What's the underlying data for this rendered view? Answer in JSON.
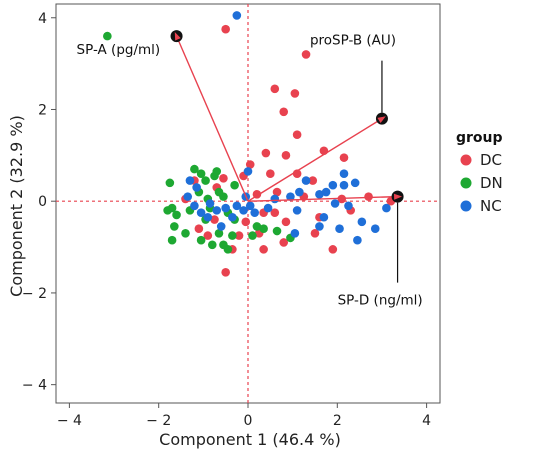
{
  "chart_data": {
    "type": "scatter",
    "title": "",
    "xlabel": "Component 1  (46.4 %)",
    "ylabel": "Component 2  (32.9 %)",
    "xlim": [
      -4.3,
      4.3
    ],
    "ylim": [
      -4.4,
      4.3
    ],
    "xticks": [
      -4,
      -2,
      0,
      2,
      4
    ],
    "yticks": [
      -4,
      -2,
      0,
      2,
      4
    ],
    "xtick_labels": [
      "− 4",
      "− 2",
      "0",
      "2",
      "4"
    ],
    "ytick_labels": [
      "− 4",
      "− 2",
      "0",
      "2",
      "4"
    ],
    "grid": false,
    "legend": {
      "title": "group",
      "position": "right"
    },
    "colors": {
      "DC": "#e8424f",
      "DN": "#1ea832",
      "NC": "#1f6fd8"
    },
    "series": [
      {
        "name": "DC",
        "color": "#e8424f",
        "points": [
          [
            -0.5,
            3.75
          ],
          [
            1.3,
            3.2
          ],
          [
            0.6,
            2.45
          ],
          [
            1.05,
            2.35
          ],
          [
            0.8,
            1.95
          ],
          [
            1.1,
            1.45
          ],
          [
            0.4,
            1.05
          ],
          [
            0.85,
            1.0
          ],
          [
            1.1,
            0.6
          ],
          [
            1.45,
            0.45
          ],
          [
            2.15,
            0.95
          ],
          [
            1.7,
            1.1
          ],
          [
            0.5,
            0.6
          ],
          [
            0.2,
            0.15
          ],
          [
            0.05,
            0.8
          ],
          [
            -0.1,
            0.55
          ],
          [
            -1.2,
            0.45
          ],
          [
            -0.7,
            0.3
          ],
          [
            -0.55,
            0.5
          ],
          [
            -1.4,
            0.05
          ],
          [
            2.1,
            0.05
          ],
          [
            2.7,
            0.1
          ],
          [
            3.2,
            0.0
          ],
          [
            2.3,
            -0.2
          ],
          [
            1.6,
            -0.35
          ],
          [
            1.5,
            -0.7
          ],
          [
            0.85,
            -0.45
          ],
          [
            0.6,
            -0.25
          ],
          [
            0.35,
            -0.25
          ],
          [
            0.25,
            -0.7
          ],
          [
            0.35,
            -1.05
          ],
          [
            -0.05,
            -0.45
          ],
          [
            -0.2,
            -0.75
          ],
          [
            -0.35,
            -1.05
          ],
          [
            -0.5,
            -1.55
          ],
          [
            -0.75,
            -0.4
          ],
          [
            -0.9,
            -0.75
          ],
          [
            -1.1,
            -0.6
          ],
          [
            0.8,
            -0.9
          ],
          [
            1.9,
            -1.05
          ],
          [
            0.65,
            0.2
          ],
          [
            1.25,
            0.1
          ]
        ]
      },
      {
        "name": "DN",
        "color": "#1ea832",
        "points": [
          [
            -3.15,
            3.6
          ],
          [
            -1.75,
            0.4
          ],
          [
            -1.7,
            -0.15
          ],
          [
            -1.8,
            -0.2
          ],
          [
            -1.65,
            -0.55
          ],
          [
            -1.7,
            -0.85
          ],
          [
            -1.4,
            -0.7
          ],
          [
            -1.2,
            0.7
          ],
          [
            -1.05,
            0.6
          ],
          [
            -0.95,
            0.45
          ],
          [
            -0.9,
            0.05
          ],
          [
            -0.75,
            0.55
          ],
          [
            -0.7,
            0.65
          ],
          [
            -1.1,
            0.2
          ],
          [
            -0.85,
            -0.15
          ],
          [
            -0.95,
            -0.4
          ],
          [
            -1.05,
            -0.85
          ],
          [
            -0.8,
            -0.95
          ],
          [
            -0.65,
            -0.7
          ],
          [
            -0.55,
            -0.95
          ],
          [
            -0.45,
            -1.05
          ],
          [
            -0.35,
            -0.75
          ],
          [
            -0.3,
            -0.4
          ],
          [
            -0.45,
            -0.25
          ],
          [
            -0.55,
            0.1
          ],
          [
            0.2,
            -0.55
          ],
          [
            0.1,
            -0.75
          ],
          [
            0.35,
            -0.6
          ],
          [
            0.65,
            -0.65
          ],
          [
            0.95,
            -0.8
          ],
          [
            -1.3,
            -0.2
          ],
          [
            -1.6,
            -0.3
          ],
          [
            -0.3,
            0.35
          ],
          [
            -0.65,
            0.2
          ]
        ]
      },
      {
        "name": "NC",
        "color": "#1f6fd8",
        "points": [
          [
            -0.25,
            4.05
          ],
          [
            0.0,
            0.65
          ],
          [
            -0.05,
            0.1
          ],
          [
            0.05,
            -0.1
          ],
          [
            1.15,
            0.2
          ],
          [
            1.3,
            0.45
          ],
          [
            1.6,
            0.15
          ],
          [
            1.9,
            0.35
          ],
          [
            2.15,
            0.35
          ],
          [
            2.4,
            0.4
          ],
          [
            2.15,
            0.6
          ],
          [
            1.75,
            0.2
          ],
          [
            1.95,
            -0.05
          ],
          [
            2.25,
            -0.1
          ],
          [
            2.55,
            -0.45
          ],
          [
            2.85,
            -0.6
          ],
          [
            2.45,
            -0.85
          ],
          [
            2.05,
            -0.6
          ],
          [
            1.7,
            -0.35
          ],
          [
            1.1,
            -0.2
          ],
          [
            0.95,
            0.1
          ],
          [
            0.6,
            0.05
          ],
          [
            0.45,
            -0.15
          ],
          [
            0.15,
            -0.25
          ],
          [
            -0.1,
            -0.2
          ],
          [
            -0.35,
            -0.35
          ],
          [
            -0.5,
            -0.15
          ],
          [
            -0.7,
            -0.2
          ],
          [
            -0.9,
            -0.35
          ],
          [
            -1.15,
            0.3
          ],
          [
            -1.3,
            0.45
          ],
          [
            -1.35,
            0.1
          ],
          [
            -1.2,
            -0.1
          ],
          [
            -1.05,
            -0.25
          ],
          [
            -0.85,
            -0.05
          ],
          [
            -0.6,
            -0.55
          ],
          [
            -0.25,
            -0.1
          ],
          [
            1.05,
            -0.7
          ],
          [
            3.1,
            -0.15
          ],
          [
            1.6,
            -0.55
          ]
        ]
      }
    ],
    "loadings": [
      {
        "name": "SP-A (pg/ml)",
        "x": -1.6,
        "y": 3.6
      },
      {
        "name": "proSP-B (AU)",
        "x": 3.0,
        "y": 1.8
      },
      {
        "name": "SP-D (ng/ml)",
        "x": 3.35,
        "y": 0.1
      }
    ]
  }
}
